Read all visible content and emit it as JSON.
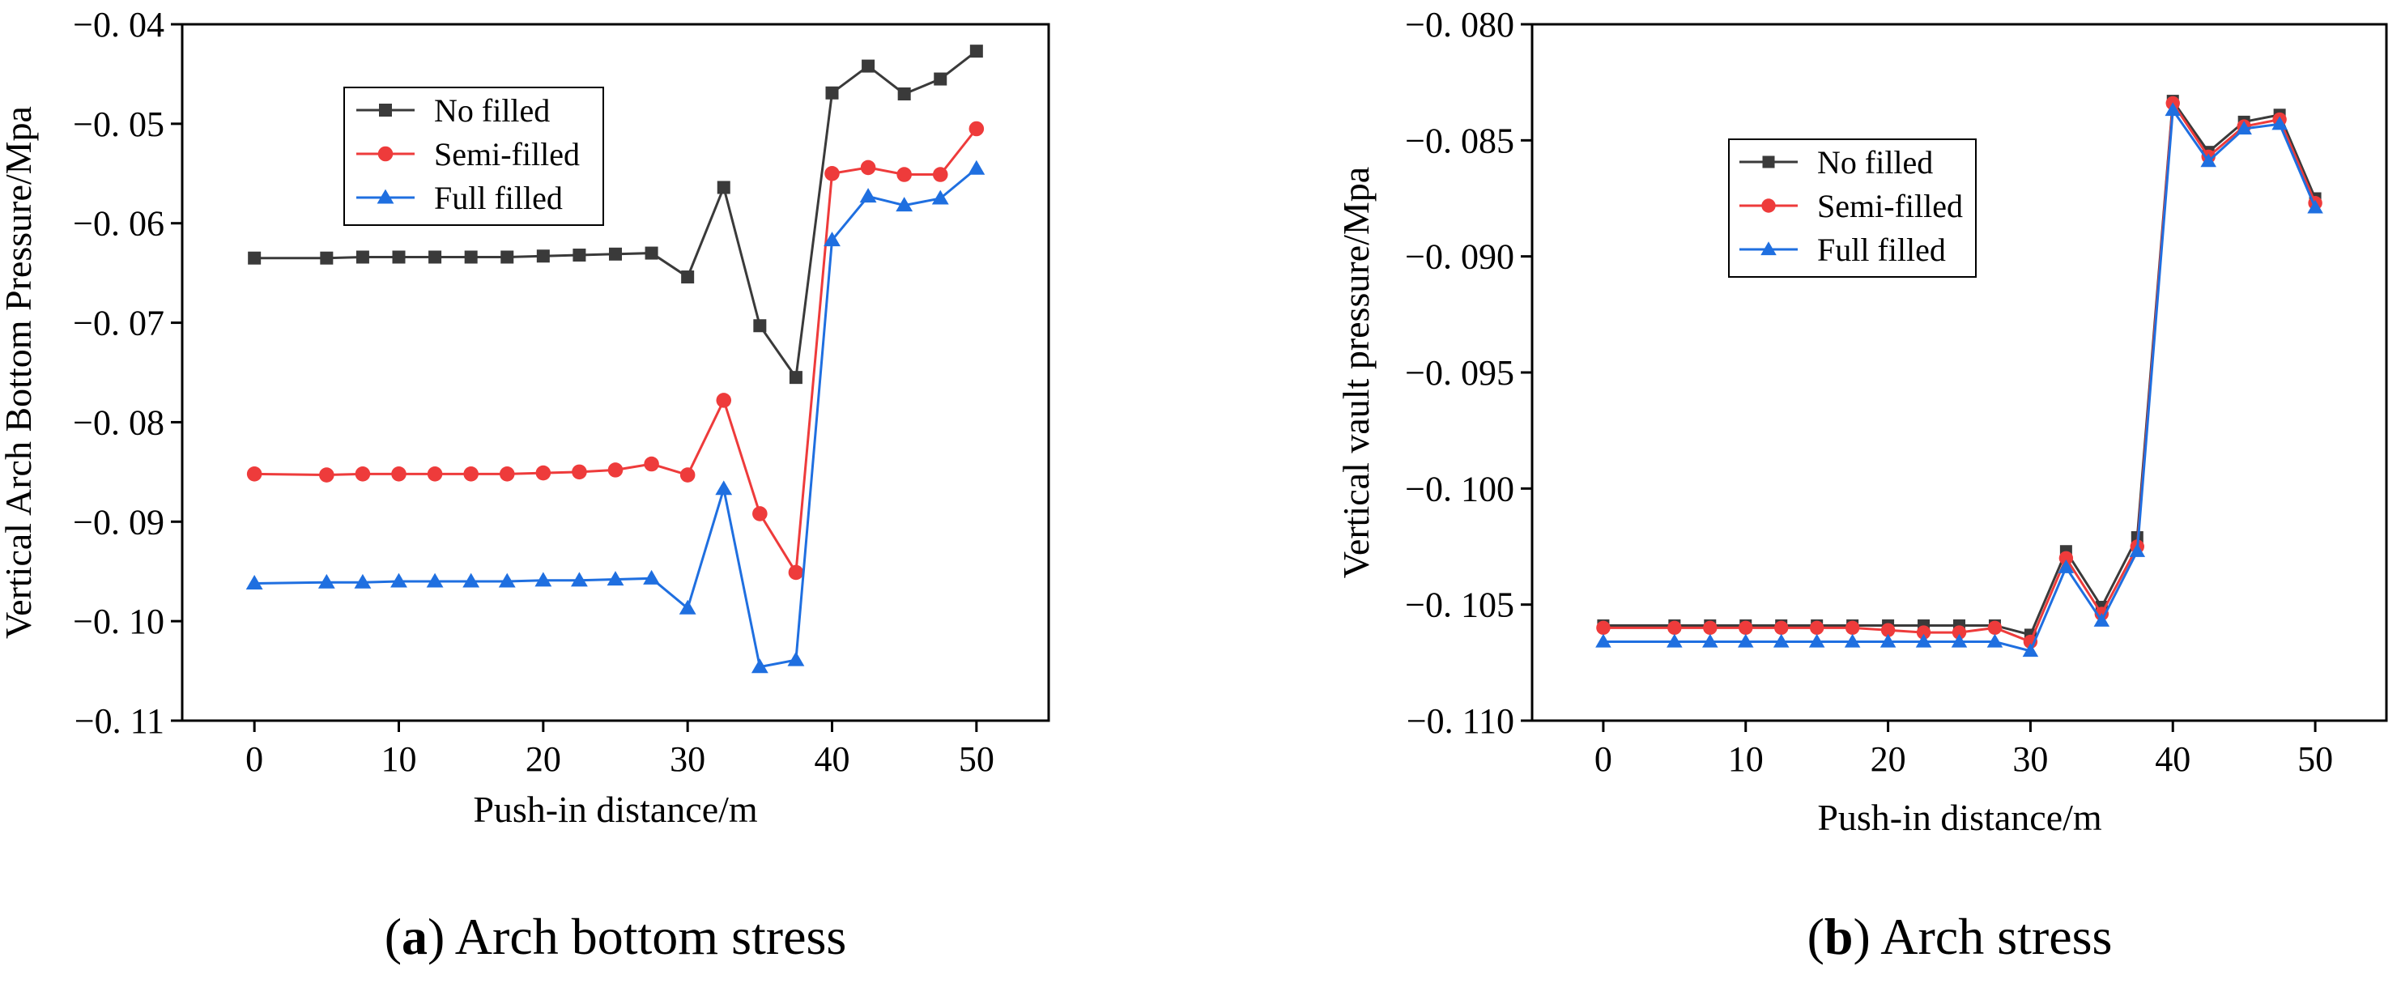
{
  "chart_data": [
    {
      "id": "a",
      "type": "line",
      "title": "",
      "xlabel": "Push-in distance/m",
      "ylabel": "Vertical Arch Bottom Pressure/Mpa",
      "xlim": [
        -5,
        55
      ],
      "ylim": [
        -0.11,
        -0.04
      ],
      "xticks": [
        0,
        10,
        20,
        30,
        40,
        50
      ],
      "yticks": [
        -0.11,
        -0.1,
        -0.09,
        -0.08,
        -0.07,
        -0.06,
        -0.05,
        -0.04
      ],
      "ytick_labels": [
        "−0. 11",
        "−0. 10",
        "−0. 09",
        "−0. 08",
        "−0. 07",
        "−0. 06",
        "−0. 05",
        "−0. 04"
      ],
      "legend_position": "top-left",
      "grid": false,
      "x": [
        0,
        5,
        7.5,
        10,
        12.5,
        15,
        17.5,
        20,
        22.5,
        25,
        27.5,
        30,
        32.5,
        35,
        37.5,
        40,
        42.5,
        45,
        47.5,
        50
      ],
      "series": [
        {
          "name": "No filled",
          "color": "#3a3a3a",
          "marker": "square",
          "values": [
            -0.0635,
            -0.0635,
            -0.0634,
            -0.0634,
            -0.0634,
            -0.0634,
            -0.0634,
            -0.0633,
            -0.0632,
            -0.0631,
            -0.063,
            -0.0654,
            -0.0564,
            -0.0703,
            -0.0755,
            -0.0469,
            -0.0442,
            -0.047,
            -0.0455,
            -0.0427
          ]
        },
        {
          "name": "Semi-filled",
          "color": "#ee3b3b",
          "marker": "circle",
          "values": [
            -0.0852,
            -0.0853,
            -0.0852,
            -0.0852,
            -0.0852,
            -0.0852,
            -0.0852,
            -0.0851,
            -0.085,
            -0.0848,
            -0.0842,
            -0.0853,
            -0.0778,
            -0.0892,
            -0.0951,
            -0.055,
            -0.0544,
            -0.0551,
            -0.0551,
            -0.0505
          ]
        },
        {
          "name": "Full filled",
          "color": "#1f6fe0",
          "marker": "triangle",
          "values": [
            -0.0962,
            -0.0961,
            -0.0961,
            -0.096,
            -0.096,
            -0.096,
            -0.096,
            -0.0959,
            -0.0959,
            -0.0958,
            -0.0957,
            -0.0987,
            -0.0867,
            -0.1046,
            -0.1039,
            -0.0617,
            -0.0573,
            -0.0582,
            -0.0575,
            -0.0545
          ]
        }
      ]
    },
    {
      "id": "b",
      "type": "line",
      "title": "",
      "xlabel": "Push-in distance/m",
      "ylabel": "Vertical vault pressure/Mpa",
      "xlim": [
        -5,
        55
      ],
      "ylim": [
        -0.11,
        -0.08
      ],
      "xticks": [
        0,
        10,
        20,
        30,
        40,
        50
      ],
      "yticks": [
        -0.11,
        -0.105,
        -0.1,
        -0.095,
        -0.09,
        -0.085,
        -0.08
      ],
      "ytick_labels": [
        "−0. 110",
        "−0. 105",
        "−0. 100",
        "−0. 095",
        "−0. 090",
        "−0. 085",
        "−0. 080"
      ],
      "legend_position": "top-left",
      "grid": false,
      "x": [
        0,
        5,
        7.5,
        10,
        12.5,
        15,
        17.5,
        20,
        22.5,
        25,
        27.5,
        30,
        32.5,
        35,
        37.5,
        40,
        42.5,
        45,
        47.5,
        50
      ],
      "series": [
        {
          "name": "No filled",
          "color": "#3a3a3a",
          "marker": "square",
          "values": [
            -0.1059,
            -0.1059,
            -0.1059,
            -0.1059,
            -0.1059,
            -0.1059,
            -0.1059,
            -0.1059,
            -0.1059,
            -0.1059,
            -0.1059,
            -0.1063,
            -0.1027,
            -0.1051,
            -0.1021,
            -0.0833,
            -0.0855,
            -0.0842,
            -0.0839,
            -0.0875
          ]
        },
        {
          "name": "Semi-filled",
          "color": "#ee3b3b",
          "marker": "circle",
          "values": [
            -0.106,
            -0.106,
            -0.106,
            -0.106,
            -0.106,
            -0.106,
            -0.106,
            -0.1061,
            -0.1062,
            -0.1062,
            -0.106,
            -0.1066,
            -0.103,
            -0.1054,
            -0.1025,
            -0.0834,
            -0.0857,
            -0.0844,
            -0.0841,
            -0.0877
          ]
        },
        {
          "name": "Full filled",
          "color": "#1f6fe0",
          "marker": "triangle",
          "values": [
            -0.1066,
            -0.1066,
            -0.1066,
            -0.1066,
            -0.1066,
            -0.1066,
            -0.1066,
            -0.1066,
            -0.1066,
            -0.1066,
            -0.1066,
            -0.107,
            -0.1034,
            -0.1057,
            -0.1027,
            -0.0837,
            -0.0859,
            -0.0845,
            -0.0843,
            -0.0879
          ]
        }
      ]
    }
  ],
  "captions": [
    {
      "letter": "a",
      "text": " Arch bottom stress"
    },
    {
      "letter": "b",
      "text": " Arch stress"
    }
  ]
}
